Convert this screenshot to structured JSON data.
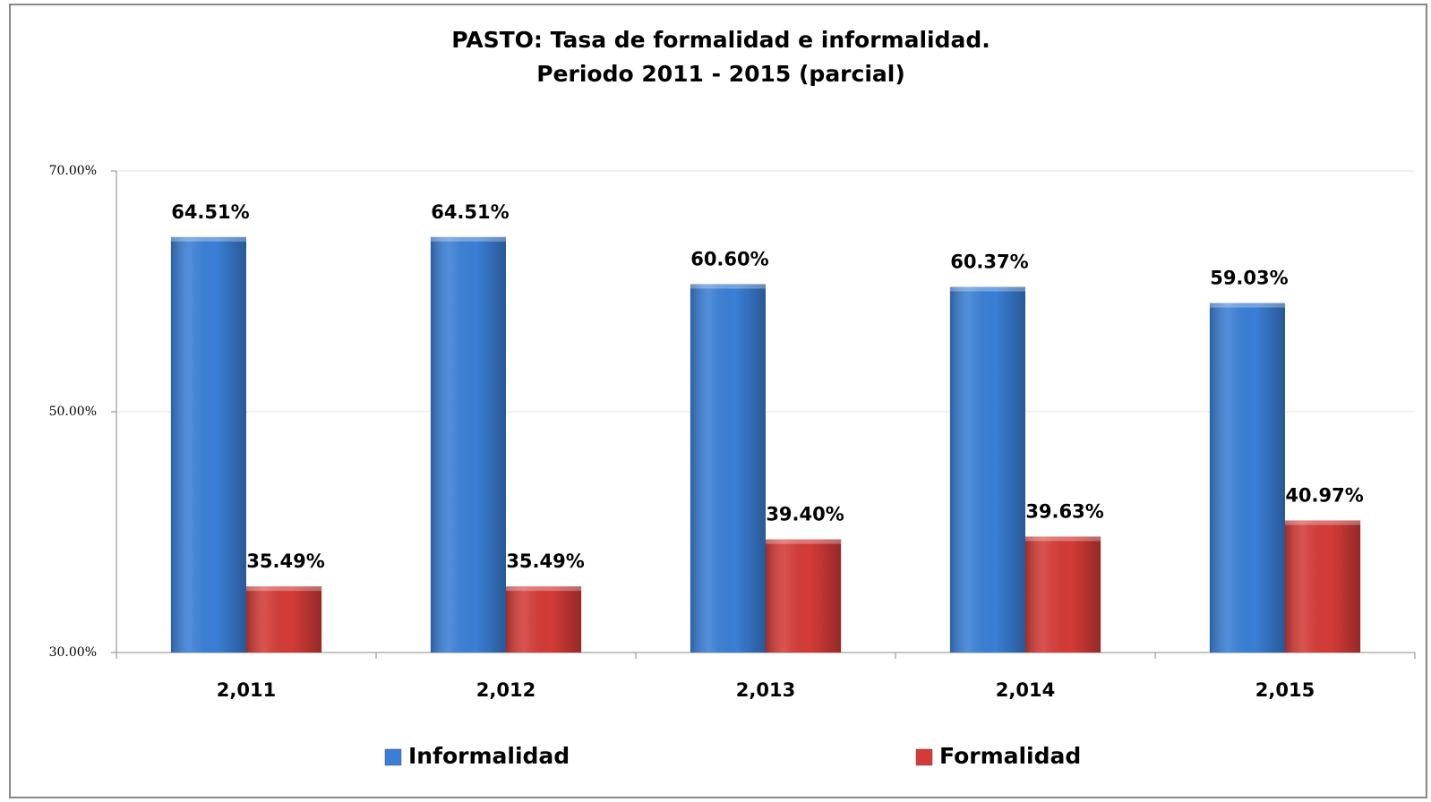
{
  "chart_data": {
    "type": "bar",
    "title": "PASTO: Tasa de formalidad e informalidad.",
    "subtitle": "Periodo 2011 - 2015 (parcial)",
    "categories": [
      "2,011",
      "2,012",
      "2,013",
      "2,014",
      "2,015"
    ],
    "series": [
      {
        "name": "Informalidad",
        "color": "#3a7fd6",
        "values": [
          64.51,
          64.51,
          60.6,
          60.37,
          59.03
        ],
        "value_labels": [
          "64.51%",
          "64.51%",
          "60.60%",
          "60.37%",
          "59.03%"
        ]
      },
      {
        "name": "Formalidad",
        "color": "#d43b37",
        "values": [
          35.49,
          35.49,
          39.4,
          39.63,
          40.97
        ],
        "value_labels": [
          "35.49%",
          "35.49%",
          "39.40%",
          "39.63%",
          "40.97%"
        ]
      }
    ],
    "ylim": [
      30,
      70
    ],
    "yticks": [
      {
        "value": 30,
        "label": "30.00%"
      },
      {
        "value": 50,
        "label": "50.00%"
      },
      {
        "value": 70,
        "label": "70.00%"
      }
    ],
    "grid": true,
    "legend": "bottom"
  }
}
